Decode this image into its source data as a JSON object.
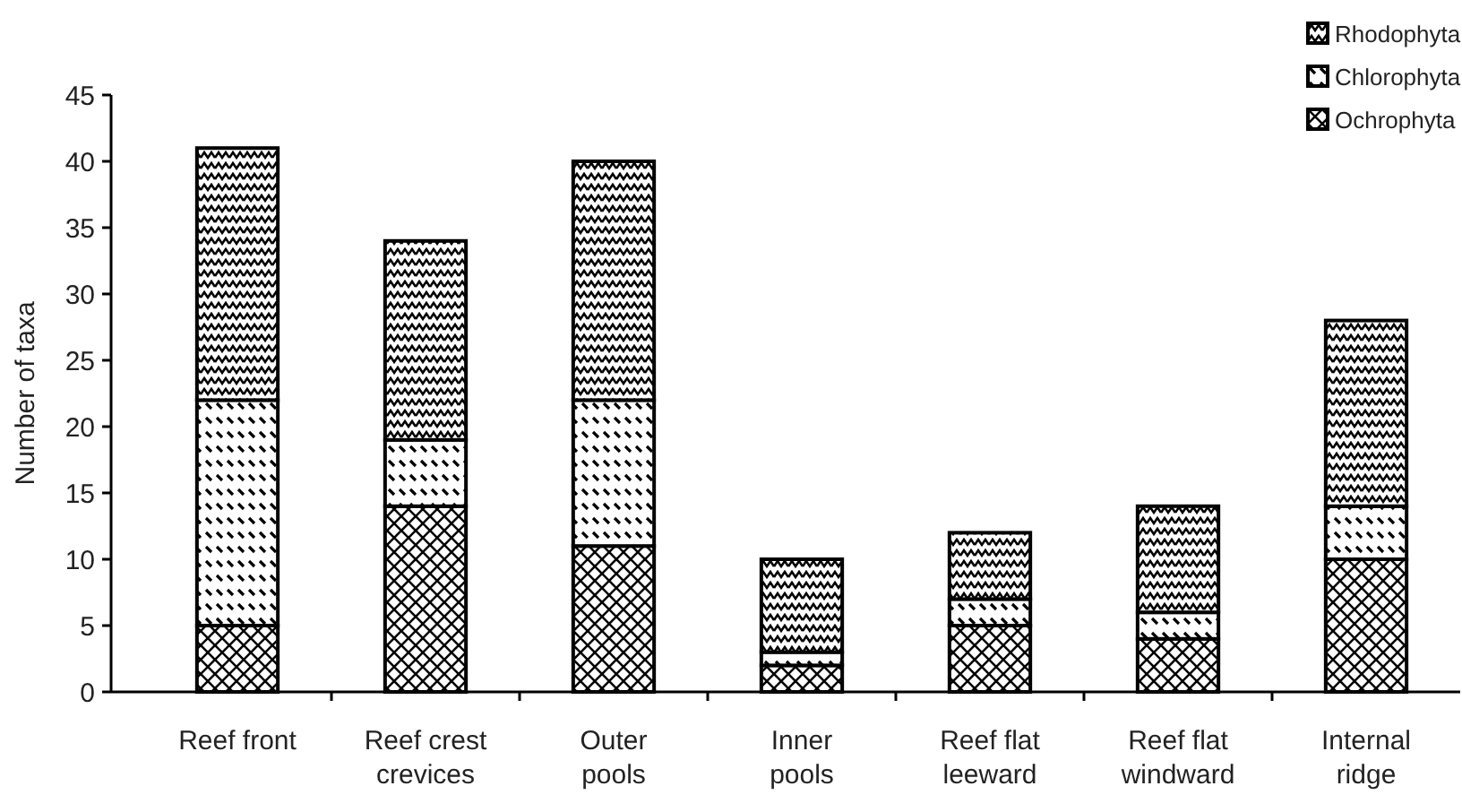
{
  "chart_data": {
    "type": "bar",
    "stacked": true,
    "ylabel": "Number of taxa",
    "categories": [
      "Reef front",
      "Reef crest crevices",
      "Outer pools",
      "Inner pools",
      "Reef flat leeward",
      "Reef flat windward",
      "Internal ridge"
    ],
    "series": [
      {
        "name": "Ochrophyta",
        "color": "#000000",
        "values": [
          5,
          14,
          11,
          2,
          5,
          4,
          10
        ]
      },
      {
        "name": "Chlorophyta",
        "color": "#000000",
        "values": [
          17,
          5,
          11,
          1,
          2,
          2,
          4
        ]
      },
      {
        "name": "Rhodophyta",
        "color": "#000000",
        "values": [
          19,
          15,
          18,
          7,
          5,
          8,
          14
        ]
      }
    ],
    "ylim": [
      0,
      45
    ],
    "yticks": [
      0,
      5,
      10,
      15,
      20,
      25,
      30,
      35,
      40,
      45
    ],
    "grid": false,
    "legend": "top right"
  }
}
